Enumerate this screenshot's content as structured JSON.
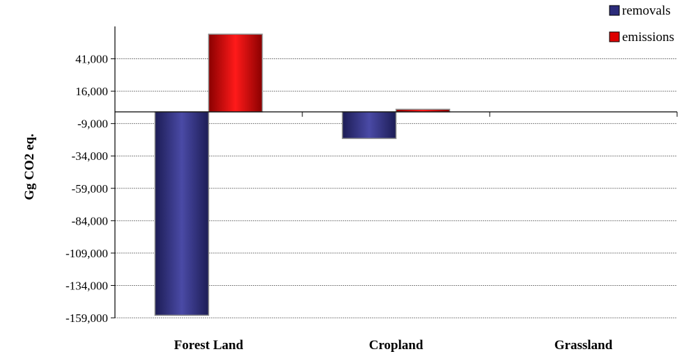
{
  "chart_data": {
    "type": "bar",
    "categories": [
      "Forest Land",
      "Cropland",
      "Grassland"
    ],
    "series": [
      {
        "name": "removals",
        "values": [
          -157000,
          -20500,
          0
        ],
        "color": "#2b2b7a"
      },
      {
        "name": "emissions",
        "values": [
          60000,
          2000,
          0
        ],
        "color": "#dd0000"
      }
    ],
    "ylabel": "Gg CO2 eq.",
    "ylim": [
      -159000,
      66000
    ],
    "yticks": [
      41000,
      16000,
      -9000,
      -34000,
      -59000,
      -84000,
      -109000,
      -134000,
      -159000
    ],
    "ytick_labels": [
      "41,000",
      "16,000",
      "-9,000",
      "-34,000",
      "-59,000",
      "-84,000",
      "-109,000",
      "-134,000",
      "-159,000"
    ],
    "grid": true,
    "legend_position": "top-right"
  }
}
